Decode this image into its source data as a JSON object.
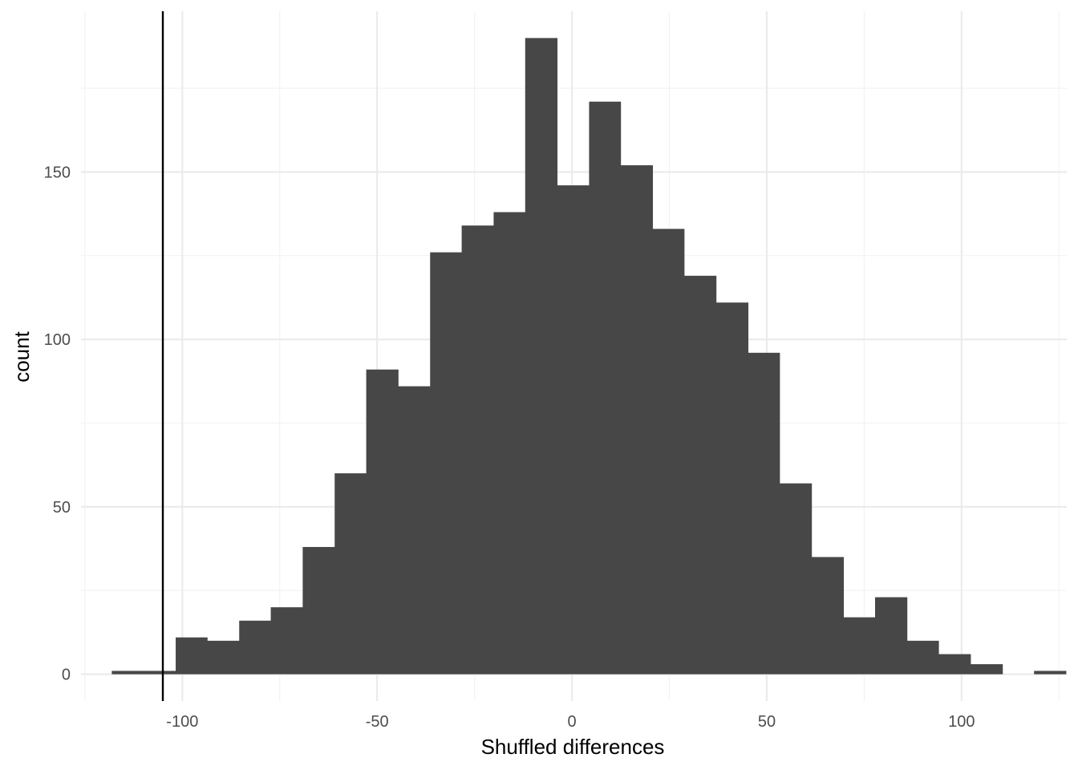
{
  "chart_data": {
    "type": "bar",
    "subtype": "histogram",
    "title": "",
    "xlabel": "Shuffled differences",
    "ylabel": "count",
    "xlim": [
      -126,
      127
    ],
    "ylim": [
      -8,
      198
    ],
    "x_ticks": [
      -100,
      -50,
      0,
      50,
      100
    ],
    "x_tick_labels": [
      "-100",
      "-50",
      "0",
      "50",
      "100"
    ],
    "y_ticks": [
      0,
      50,
      100,
      150
    ],
    "y_tick_labels": [
      "0",
      "50",
      "100",
      "150"
    ],
    "grid": true,
    "legend": "none",
    "bins": [
      {
        "x0": -118.1,
        "x1": -109.9,
        "count": 1
      },
      {
        "x0": -109.9,
        "x1": -101.7,
        "count": 1
      },
      {
        "x0": -101.7,
        "x1": -93.6,
        "count": 11
      },
      {
        "x0": -93.6,
        "x1": -85.4,
        "count": 10
      },
      {
        "x0": -85.4,
        "x1": -77.3,
        "count": 16
      },
      {
        "x0": -77.3,
        "x1": -69.1,
        "count": 20
      },
      {
        "x0": -69.1,
        "x1": -60.9,
        "count": 38
      },
      {
        "x0": -60.9,
        "x1": -52.8,
        "count": 60
      },
      {
        "x0": -52.8,
        "x1": -44.6,
        "count": 91
      },
      {
        "x0": -44.6,
        "x1": -36.4,
        "count": 86
      },
      {
        "x0": -36.4,
        "x1": -28.3,
        "count": 126
      },
      {
        "x0": -28.3,
        "x1": -20.1,
        "count": 134
      },
      {
        "x0": -20.1,
        "x1": -12.0,
        "count": 138
      },
      {
        "x0": -12.0,
        "x1": -3.8,
        "count": 190
      },
      {
        "x0": -3.8,
        "x1": 4.4,
        "count": 146
      },
      {
        "x0": 4.4,
        "x1": 12.5,
        "count": 171
      },
      {
        "x0": 12.5,
        "x1": 20.7,
        "count": 152
      },
      {
        "x0": 20.7,
        "x1": 28.8,
        "count": 133
      },
      {
        "x0": 28.8,
        "x1": 37.0,
        "count": 119
      },
      {
        "x0": 37.0,
        "x1": 45.2,
        "count": 111
      },
      {
        "x0": 45.2,
        "x1": 53.3,
        "count": 96
      },
      {
        "x0": 53.3,
        "x1": 61.5,
        "count": 57
      },
      {
        "x0": 61.5,
        "x1": 69.7,
        "count": 35
      },
      {
        "x0": 69.7,
        "x1": 77.8,
        "count": 17
      },
      {
        "x0": 77.8,
        "x1": 86.0,
        "count": 23
      },
      {
        "x0": 86.0,
        "x1": 94.1,
        "count": 10
      },
      {
        "x0": 94.1,
        "x1": 102.3,
        "count": 6
      },
      {
        "x0": 102.3,
        "x1": 110.5,
        "count": 3
      },
      {
        "x0": 110.5,
        "x1": 118.6,
        "count": 0
      },
      {
        "x0": 118.6,
        "x1": 126.8,
        "count": 1
      }
    ],
    "reference_line": {
      "x": -105
    },
    "colors": {
      "bar": "#474747",
      "grid_major": "#ebebeb",
      "grid_minor": "#f2f2f2",
      "reference_line": "#000000",
      "tick_label": "#4d4d4d",
      "axis_title": "#000000"
    }
  }
}
